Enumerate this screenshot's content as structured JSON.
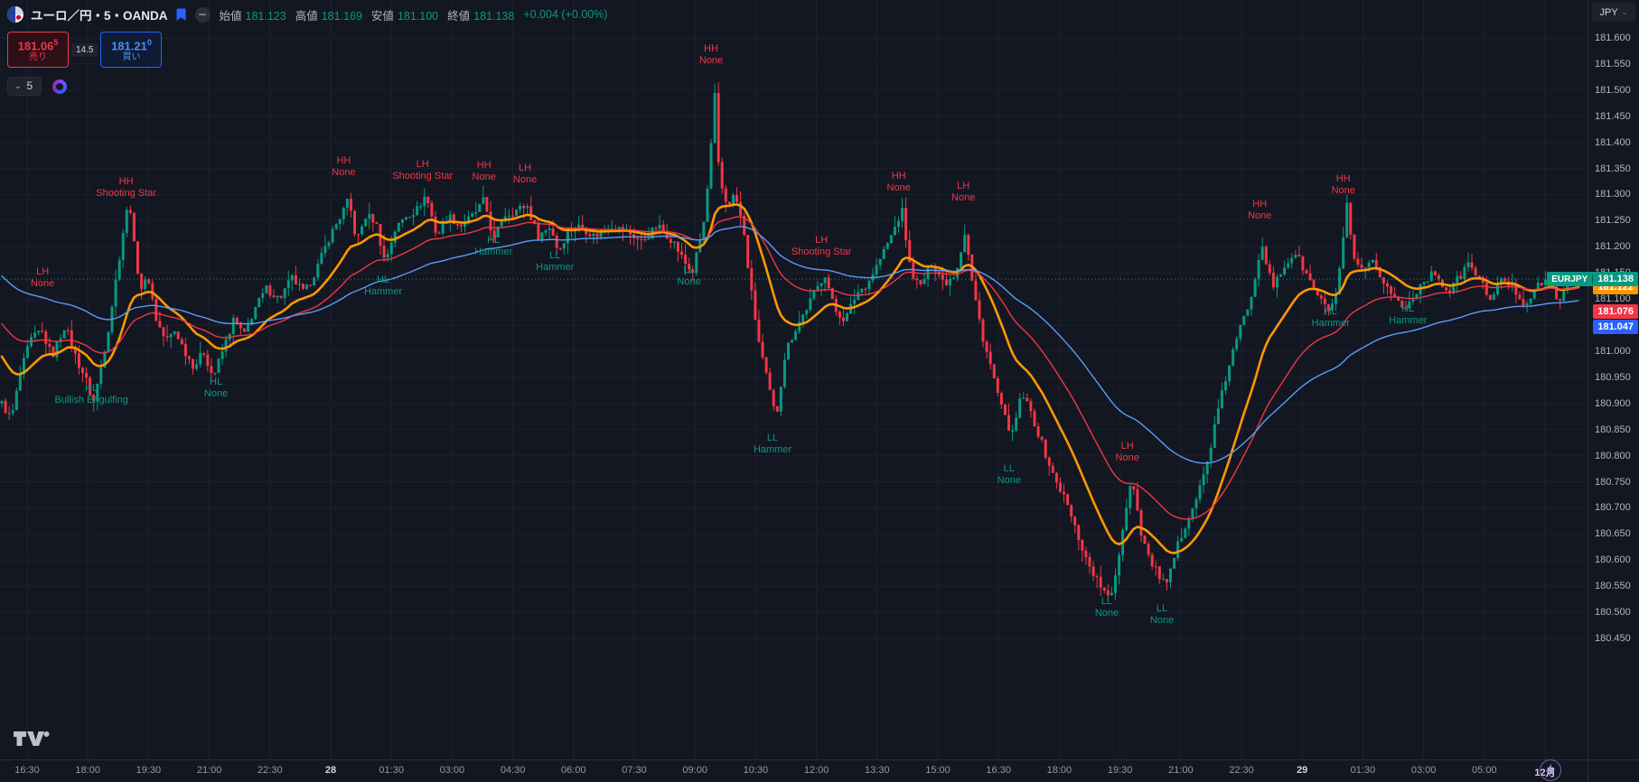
{
  "header": {
    "title": "ユーロ／円・5・OANDA",
    "ohlc": {
      "open_label": "始値",
      "open": "181.123",
      "high_label": "高値",
      "high": "181.169",
      "low_label": "安値",
      "low": "181.100",
      "close_label": "終値",
      "close": "181.138",
      "change": "+0.004 (+0.00%)"
    }
  },
  "trade_panel": {
    "sell": {
      "price": "181.06",
      "pips": "5",
      "label": "売り"
    },
    "spread": "14.5",
    "buy": {
      "price": "181.21",
      "pips": "0",
      "label": "買い"
    }
  },
  "toolbar": {
    "interval": "5"
  },
  "price_axis": {
    "currency": "JPY",
    "labels": [
      {
        "prefix": "EURJPY",
        "text": "181.138",
        "price": 181.138,
        "color": "#089981"
      },
      {
        "text": "181.122",
        "price": 181.122,
        "color": "#ff9800"
      },
      {
        "text": "181.076",
        "price": 181.076,
        "color": "#f23645"
      },
      {
        "text": "181.047",
        "price": 181.047,
        "color": "#2962ff"
      }
    ]
  },
  "time_axis": {
    "labels": [
      "16:30",
      "18:00",
      "19:30",
      "21:00",
      "22:30",
      "28",
      "01:30",
      "03:00",
      "04:30",
      "06:00",
      "07:30",
      "09:00",
      "10:30",
      "12:00",
      "13:30",
      "15:00",
      "16:30",
      "18:00",
      "19:30",
      "21:00",
      "22:30",
      "29",
      "01:30",
      "03:00",
      "05:00",
      "12月"
    ],
    "emphasis": [
      5,
      21,
      25
    ]
  },
  "chart_data": {
    "type": "candlestick",
    "symbol": "EURJPY",
    "exchange": "OANDA",
    "interval_minutes": 5,
    "last_price": 181.138,
    "ohlc_current": {
      "open": 181.123,
      "high": 181.169,
      "low": 181.1,
      "close": 181.138,
      "change": "+0.004",
      "change_pct": "+0.00%"
    },
    "axis": {
      "price_top": 181.6,
      "price_bottom": 180.45,
      "tick_step": 0.05
    },
    "colors": {
      "up": "#089981",
      "down": "#f23645",
      "background": "#131722",
      "grid": "#1d212e"
    },
    "candle_count": 430,
    "noise": 0.016,
    "mas": [
      {
        "name": "ema-fast",
        "period": 18,
        "color": "#ff9800",
        "width": 2.6,
        "init": 181.0,
        "last_value": 181.122
      },
      {
        "name": "ema-mid",
        "period": 40,
        "color": "#f23645",
        "width": 1.4,
        "init": 181.06,
        "last_value": 181.076
      },
      {
        "name": "ema-slow",
        "period": 80,
        "color": "#5b9cf6",
        "width": 1.4,
        "init": 181.15,
        "last_value": 181.047
      }
    ],
    "path": [
      [
        0,
        180.9
      ],
      [
        0.006,
        180.87
      ],
      [
        0.012,
        180.96
      ],
      [
        0.018,
        181.02
      ],
      [
        0.025,
        181.04
      ],
      [
        0.032,
        180.99
      ],
      [
        0.04,
        181.05
      ],
      [
        0.048,
        180.98
      ],
      [
        0.053,
        180.95
      ],
      [
        0.058,
        180.9
      ],
      [
        0.063,
        180.97
      ],
      [
        0.068,
        181.05
      ],
      [
        0.073,
        181.15
      ],
      [
        0.078,
        181.25
      ],
      [
        0.081,
        181.29
      ],
      [
        0.084,
        181.2
      ],
      [
        0.088,
        181.12
      ],
      [
        0.093,
        181.14
      ],
      [
        0.098,
        181.06
      ],
      [
        0.104,
        181.02
      ],
      [
        0.11,
        181.04
      ],
      [
        0.116,
        181.0
      ],
      [
        0.122,
        180.97
      ],
      [
        0.128,
        181.0
      ],
      [
        0.134,
        180.95
      ],
      [
        0.14,
        181.0
      ],
      [
        0.147,
        181.06
      ],
      [
        0.154,
        181.03
      ],
      [
        0.16,
        181.08
      ],
      [
        0.168,
        181.12
      ],
      [
        0.176,
        181.1
      ],
      [
        0.184,
        181.14
      ],
      [
        0.192,
        181.11
      ],
      [
        0.2,
        181.16
      ],
      [
        0.208,
        181.22
      ],
      [
        0.215,
        181.26
      ],
      [
        0.22,
        181.29
      ],
      [
        0.225,
        181.21
      ],
      [
        0.231,
        181.26
      ],
      [
        0.237,
        181.25
      ],
      [
        0.243,
        181.17
      ],
      [
        0.249,
        181.23
      ],
      [
        0.256,
        181.26
      ],
      [
        0.263,
        181.27
      ],
      [
        0.269,
        181.3
      ],
      [
        0.276,
        181.22
      ],
      [
        0.283,
        181.26
      ],
      [
        0.291,
        181.24
      ],
      [
        0.299,
        181.26
      ],
      [
        0.306,
        181.29
      ],
      [
        0.312,
        181.21
      ],
      [
        0.318,
        181.26
      ],
      [
        0.326,
        181.27
      ],
      [
        0.333,
        181.28
      ],
      [
        0.34,
        181.22
      ],
      [
        0.348,
        181.24
      ],
      [
        0.353,
        181.19
      ],
      [
        0.359,
        181.23
      ],
      [
        0.367,
        181.24
      ],
      [
        0.376,
        181.22
      ],
      [
        0.386,
        181.24
      ],
      [
        0.396,
        181.23
      ],
      [
        0.406,
        181.21
      ],
      [
        0.416,
        181.24
      ],
      [
        0.426,
        181.21
      ],
      [
        0.433,
        181.17
      ],
      [
        0.438,
        181.15
      ],
      [
        0.445,
        181.24
      ],
      [
        0.449,
        181.35
      ],
      [
        0.452,
        181.5
      ],
      [
        0.455,
        181.33
      ],
      [
        0.46,
        181.28
      ],
      [
        0.465,
        181.3
      ],
      [
        0.47,
        181.24
      ],
      [
        0.475,
        181.12
      ],
      [
        0.48,
        181.02
      ],
      [
        0.485,
        180.95
      ],
      [
        0.491,
        180.87
      ],
      [
        0.497,
        181.0
      ],
      [
        0.503,
        181.04
      ],
      [
        0.51,
        181.08
      ],
      [
        0.517,
        181.12
      ],
      [
        0.522,
        181.15
      ],
      [
        0.528,
        181.08
      ],
      [
        0.535,
        181.06
      ],
      [
        0.542,
        181.11
      ],
      [
        0.549,
        181.13
      ],
      [
        0.556,
        181.17
      ],
      [
        0.564,
        181.22
      ],
      [
        0.571,
        181.27
      ],
      [
        0.576,
        181.16
      ],
      [
        0.582,
        181.12
      ],
      [
        0.59,
        181.17
      ],
      [
        0.598,
        181.13
      ],
      [
        0.605,
        181.15
      ],
      [
        0.611,
        181.23
      ],
      [
        0.616,
        181.12
      ],
      [
        0.622,
        181.03
      ],
      [
        0.629,
        180.95
      ],
      [
        0.635,
        180.88
      ],
      [
        0.641,
        180.84
      ],
      [
        0.647,
        180.92
      ],
      [
        0.653,
        180.88
      ],
      [
        0.66,
        180.82
      ],
      [
        0.667,
        180.76
      ],
      [
        0.674,
        180.72
      ],
      [
        0.681,
        180.66
      ],
      [
        0.688,
        180.6
      ],
      [
        0.695,
        180.56
      ],
      [
        0.703,
        180.52
      ],
      [
        0.709,
        180.62
      ],
      [
        0.714,
        180.72
      ],
      [
        0.717,
        180.76
      ],
      [
        0.722,
        180.66
      ],
      [
        0.728,
        180.6
      ],
      [
        0.734,
        180.57
      ],
      [
        0.739,
        180.55
      ],
      [
        0.745,
        180.62
      ],
      [
        0.752,
        180.68
      ],
      [
        0.758,
        180.72
      ],
      [
        0.764,
        180.78
      ],
      [
        0.771,
        180.88
      ],
      [
        0.778,
        180.97
      ],
      [
        0.785,
        181.04
      ],
      [
        0.792,
        181.1
      ],
      [
        0.799,
        181.21
      ],
      [
        0.806,
        181.12
      ],
      [
        0.813,
        181.16
      ],
      [
        0.82,
        181.19
      ],
      [
        0.827,
        181.15
      ],
      [
        0.834,
        181.11
      ],
      [
        0.84,
        181.08
      ],
      [
        0.845,
        181.09
      ],
      [
        0.849,
        181.16
      ],
      [
        0.853,
        181.28
      ],
      [
        0.857,
        181.18
      ],
      [
        0.863,
        181.15
      ],
      [
        0.87,
        181.17
      ],
      [
        0.877,
        181.13
      ],
      [
        0.884,
        181.1
      ],
      [
        0.89,
        181.08
      ],
      [
        0.896,
        181.11
      ],
      [
        0.903,
        181.14
      ],
      [
        0.91,
        181.15
      ],
      [
        0.917,
        181.11
      ],
      [
        0.924,
        181.14
      ],
      [
        0.931,
        181.17
      ],
      [
        0.938,
        181.13
      ],
      [
        0.945,
        181.1
      ],
      [
        0.952,
        181.14
      ],
      [
        0.959,
        181.12
      ],
      [
        0.966,
        181.09
      ],
      [
        0.973,
        181.12
      ],
      [
        0.98,
        181.14
      ],
      [
        0.987,
        181.1
      ],
      [
        0.993,
        181.12
      ],
      [
        1,
        181.138
      ]
    ],
    "annotations": [
      {
        "x": 0.027,
        "price": 181.14,
        "line1": "LH",
        "line2": "None",
        "dir": "dn"
      },
      {
        "x": 0.08,
        "price": 181.313,
        "line1": "HH",
        "line2": "Shooting Star",
        "dir": "dn"
      },
      {
        "x": 0.058,
        "price": 180.917,
        "line1": "HL",
        "line2": "Bullish Engulfing",
        "dir": "up"
      },
      {
        "x": 0.137,
        "price": 180.929,
        "line1": "HL",
        "line2": "None",
        "dir": "up"
      },
      {
        "x": 0.218,
        "price": 181.353,
        "line1": "HH",
        "line2": "None",
        "dir": "dn"
      },
      {
        "x": 0.243,
        "price": 181.124,
        "line1": "HL",
        "line2": "Hammer",
        "dir": "up"
      },
      {
        "x": 0.268,
        "price": 181.346,
        "line1": "LH",
        "line2": "Shooting Star",
        "dir": "dn"
      },
      {
        "x": 0.307,
        "price": 181.344,
        "line1": "HH",
        "line2": "None",
        "dir": "dn"
      },
      {
        "x": 0.313,
        "price": 181.2,
        "line1": "HL",
        "line2": "Hammer",
        "dir": "up"
      },
      {
        "x": 0.333,
        "price": 181.339,
        "line1": "LH",
        "line2": "None",
        "dir": "dn"
      },
      {
        "x": 0.352,
        "price": 181.171,
        "line1": "LL",
        "line2": "Hammer",
        "dir": "up"
      },
      {
        "x": 0.437,
        "price": 181.143,
        "line1": "LL",
        "line2": "None",
        "dir": "up"
      },
      {
        "x": 0.451,
        "price": 181.567,
        "line1": "HH",
        "line2": "None",
        "dir": "dn"
      },
      {
        "x": 0.49,
        "price": 180.822,
        "line1": "LL",
        "line2": "Hammer",
        "dir": "up"
      },
      {
        "x": 0.521,
        "price": 181.2,
        "line1": "LH",
        "line2": "Shooting Star",
        "dir": "dn"
      },
      {
        "x": 0.57,
        "price": 181.323,
        "line1": "HH",
        "line2": "None",
        "dir": "dn"
      },
      {
        "x": 0.611,
        "price": 181.304,
        "line1": "LH",
        "line2": "None",
        "dir": "dn"
      },
      {
        "x": 0.64,
        "price": 180.763,
        "line1": "LL",
        "line2": "None",
        "dir": "up"
      },
      {
        "x": 0.702,
        "price": 180.509,
        "line1": "LL",
        "line2": "None",
        "dir": "up"
      },
      {
        "x": 0.715,
        "price": 180.806,
        "line1": "LH",
        "line2": "None",
        "dir": "dn"
      },
      {
        "x": 0.737,
        "price": 180.495,
        "line1": "LL",
        "line2": "None",
        "dir": "up"
      },
      {
        "x": 0.799,
        "price": 181.27,
        "line1": "HH",
        "line2": "None",
        "dir": "dn"
      },
      {
        "x": 0.844,
        "price": 181.064,
        "line1": "HL",
        "line2": "Hammer",
        "dir": "up"
      },
      {
        "x": 0.852,
        "price": 181.318,
        "line1": "HH",
        "line2": "None",
        "dir": "dn"
      },
      {
        "x": 0.893,
        "price": 181.069,
        "line1": "HL",
        "line2": "Hammer",
        "dir": "up"
      }
    ]
  }
}
